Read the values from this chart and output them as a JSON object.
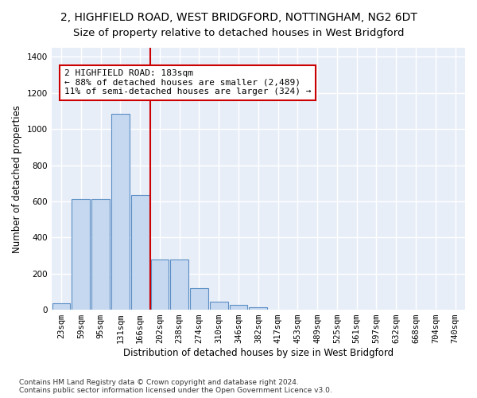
{
  "title_line1": "2, HIGHFIELD ROAD, WEST BRIDGFORD, NOTTINGHAM, NG2 6DT",
  "title_line2": "Size of property relative to detached houses in West Bridgford",
  "xlabel": "Distribution of detached houses by size in West Bridgford",
  "ylabel": "Number of detached properties",
  "footnote": "Contains HM Land Registry data © Crown copyright and database right 2024.\nContains public sector information licensed under the Open Government Licence v3.0.",
  "bar_labels": [
    "23sqm",
    "59sqm",
    "95sqm",
    "131sqm",
    "166sqm",
    "202sqm",
    "238sqm",
    "274sqm",
    "310sqm",
    "346sqm",
    "382sqm",
    "417sqm",
    "453sqm",
    "489sqm",
    "525sqm",
    "561sqm",
    "597sqm",
    "632sqm",
    "668sqm",
    "704sqm",
    "740sqm"
  ],
  "bar_values": [
    35,
    615,
    615,
    1085,
    635,
    280,
    280,
    120,
    45,
    25,
    15,
    0,
    0,
    0,
    0,
    0,
    0,
    0,
    0,
    0,
    0
  ],
  "bar_color": "#c5d8f0",
  "bar_edgecolor": "#5b8ec4",
  "vline_x": 4.5,
  "vline_color": "#cc0000",
  "annotation_text": "2 HIGHFIELD ROAD: 183sqm\n← 88% of detached houses are smaller (2,489)\n11% of semi-detached houses are larger (324) →",
  "ylim": [
    0,
    1450
  ],
  "yticks": [
    0,
    200,
    400,
    600,
    800,
    1000,
    1200,
    1400
  ],
  "background_color": "#e8eef8",
  "grid_color": "#ffffff",
  "title_fontsize": 10,
  "axis_label_fontsize": 8.5,
  "tick_fontsize": 7.5,
  "annotation_fontsize": 8
}
